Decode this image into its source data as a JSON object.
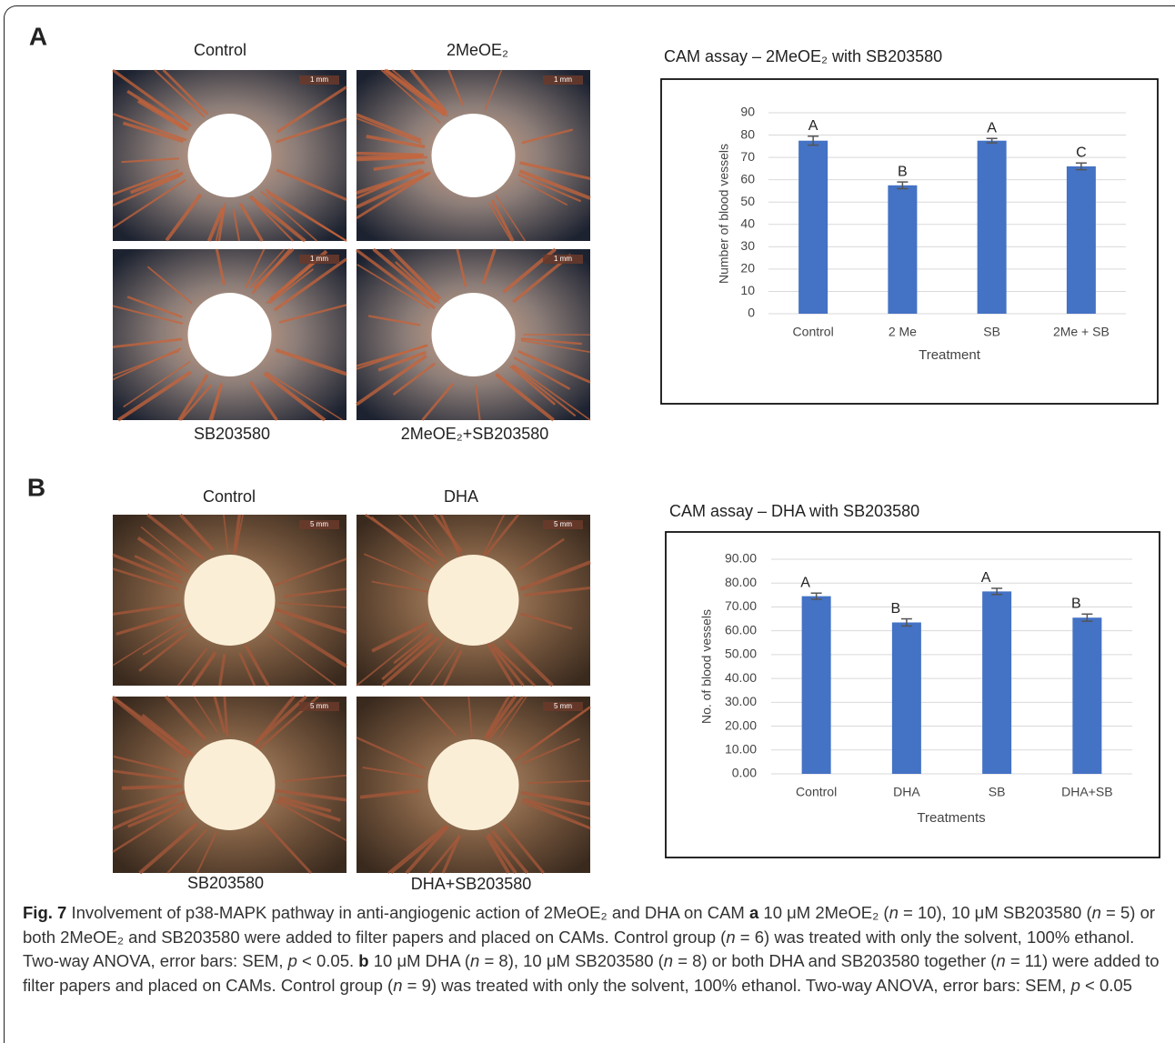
{
  "panels": [
    {
      "letter": "A",
      "photo_labels": [
        "Control",
        "2MeOE₂",
        "SB203580",
        "2MeOE₂+SB203580"
      ],
      "scale_labels": [
        "1 mm",
        "1 mm",
        "1 mm",
        "1 mm"
      ]
    },
    {
      "letter": "B",
      "photo_labels": [
        "Control",
        "DHA",
        "SB203580",
        "DHA+SB203580"
      ],
      "scale_labels": [
        "5 mm",
        "5 mm",
        "5 mm",
        "5 mm"
      ]
    }
  ],
  "chart_data": [
    {
      "type": "bar",
      "title": "CAM assay – 2MeOE₂ with SB203580",
      "x_label": "Treatment",
      "y_label": "Number of blood vessels",
      "categories": [
        "Control",
        "2 Me",
        "SB",
        "2Me + SB"
      ],
      "values": [
        77.5,
        57.5,
        77.5,
        66
      ],
      "errors": [
        2,
        1.5,
        1,
        1.5
      ],
      "letters": [
        "A",
        "B",
        "A",
        "C"
      ],
      "color": "#4472c4",
      "ylim": [
        0,
        90
      ],
      "yticks": [
        0,
        10,
        20,
        30,
        40,
        50,
        60,
        70,
        80,
        90
      ],
      "grid": true
    },
    {
      "type": "bar",
      "title": "CAM assay – DHA with SB203580",
      "x_label": "Treatments",
      "y_label": "No. of blood vessels",
      "categories": [
        "Control",
        "DHA",
        "SB",
        "DHA+SB"
      ],
      "values": [
        74.5,
        63.5,
        76.5,
        65.5
      ],
      "errors": [
        1.3,
        1.5,
        1.3,
        1.5
      ],
      "letters": [
        "A",
        "B",
        "A",
        "B"
      ],
      "color": "#4472c4",
      "ylim": [
        0,
        90
      ],
      "yticks": [
        {
          "value": 0,
          "label": "0.00"
        },
        {
          "value": 10,
          "label": "10.00"
        },
        {
          "value": 20,
          "label": "20.00"
        },
        {
          "value": 30,
          "label": "30.00"
        },
        {
          "value": 40,
          "label": "40.00"
        },
        {
          "value": 50,
          "label": "50.00"
        },
        {
          "value": 60,
          "label": "60.00"
        },
        {
          "value": 70,
          "label": "70.00"
        },
        {
          "value": 80,
          "label": "80.00"
        },
        {
          "value": 90,
          "label": "90.00"
        }
      ],
      "grid": true
    }
  ],
  "caption": [
    "Fig. 7",
    " Involvement of p38-MAPK pathway in anti-angiogenic action of 2MeOE₂ and DHA on CAM ",
    "a",
    " 10 μM 2MeOE₂ (",
    "n",
    " = 10), 10 μM SB203580 (",
    "n",
    " = 5) or both 2MeOE₂ and SB203580 were added to filter papers and placed on CAMs. Control group (",
    "n",
    " = 6) was treated with only the solvent, 100% ethanol. Two-way ANOVA, error bars: SEM, ",
    "p",
    " < 0.05. ",
    "b",
    " 10 μM DHA (",
    "n",
    " = 8), 10 μM SB203580 (",
    "n",
    " = 8) or both DHA and SB203580 together (",
    "n",
    " = 11) were added to filter papers and placed on CAMs. Control group (",
    "n",
    " = 9) was treated with only the solvent, 100% ethanol. Two-way ANOVA, error bars: SEM, ",
    "p",
    " < 0.05"
  ]
}
